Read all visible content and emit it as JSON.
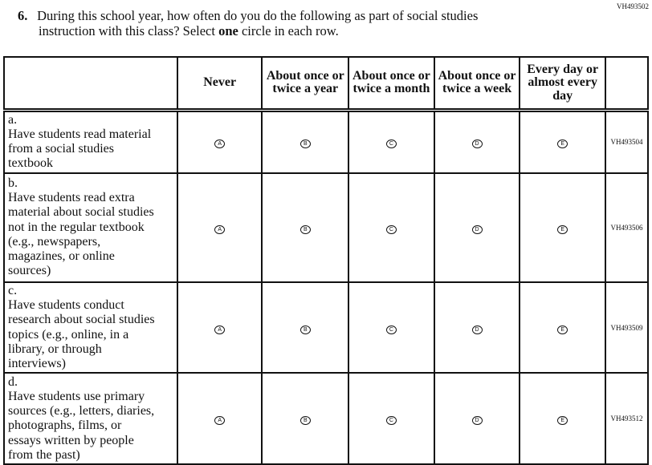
{
  "item_code": "VH493502",
  "question": {
    "number": "6.",
    "line1": "During this school year, how often do you do the following as part of social studies",
    "line2_pre": "instruction with this class? Select ",
    "line2_bold": "one",
    "line2_post": " circle in each row."
  },
  "columns": [
    "Never",
    "About once or twice a year",
    "About once or twice a month",
    "About once or twice a week",
    "Every day or almost every day"
  ],
  "bubbles": [
    "A",
    "B",
    "C",
    "D",
    "E"
  ],
  "rows": [
    {
      "letter": "a.",
      "text": "Have students read material from a social studies textbook",
      "code": "VH493504"
    },
    {
      "letter": "b.",
      "text": "Have students read extra material about social studies not in the regular textbook (e.g., newspapers, magazines, or online sources)",
      "code": "VH493506"
    },
    {
      "letter": "c.",
      "text": "Have students conduct research about social studies topics (e.g., online, in a library, or through interviews)",
      "code": "VH493509"
    },
    {
      "letter": "d.",
      "text": "Have students use primary sources (e.g., letters, diaries, photographs, films, or essays written by people from the past)",
      "code": "VH493512"
    }
  ]
}
